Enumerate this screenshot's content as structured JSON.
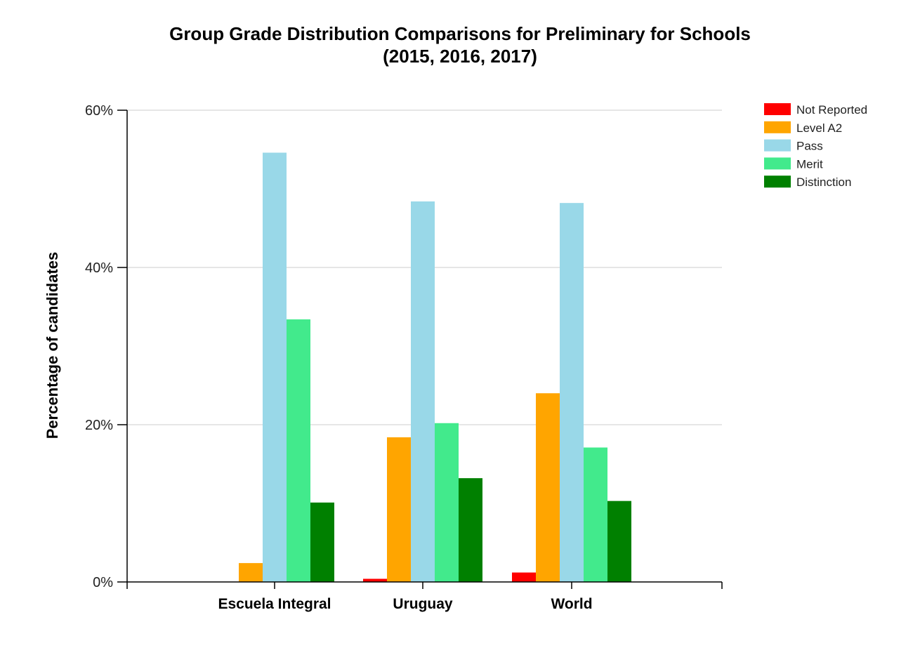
{
  "chart_data": {
    "type": "bar",
    "title_lines": [
      "Group Grade Distribution Comparisons for Preliminary for Schools",
      "(2015, 2016, 2017)"
    ],
    "xlabel": "",
    "ylabel": "Percentage of candidates",
    "ylim": [
      0,
      60
    ],
    "yticks": [
      "0%",
      "20%",
      "40%",
      "60%"
    ],
    "ytick_values": [
      0,
      20,
      40,
      60
    ],
    "categories": [
      "Escuela Integral",
      "Uruguay",
      "World"
    ],
    "series": [
      {
        "name": "Not Reported",
        "color": "#ff0000",
        "values": [
          0,
          0.4,
          1.2
        ]
      },
      {
        "name": "Level A2",
        "color": "#ffa500",
        "values": [
          2.4,
          18.4,
          24.0
        ]
      },
      {
        "name": "Pass",
        "color": "#99d8e8",
        "values": [
          54.6,
          48.4,
          48.2
        ]
      },
      {
        "name": "Merit",
        "color": "#42ea8c",
        "values": [
          33.4,
          20.2,
          17.1
        ]
      },
      {
        "name": "Distinction",
        "color": "#008000",
        "values": [
          10.1,
          13.2,
          10.3
        ]
      }
    ],
    "grid": true,
    "legend_position": "top-right"
  }
}
